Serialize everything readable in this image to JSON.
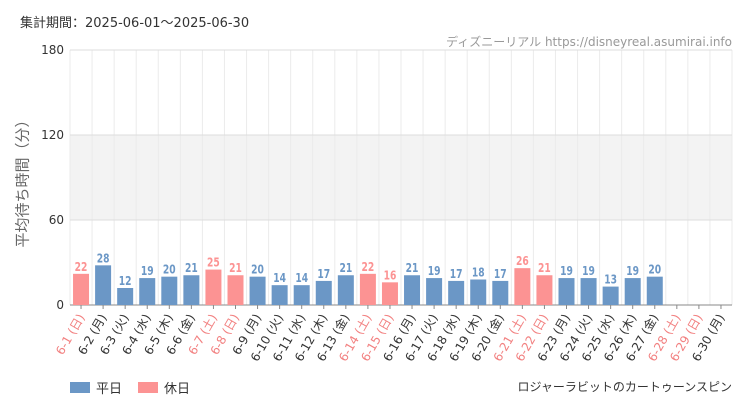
{
  "period_text": "集計期間：2025-06-01～2025-06-30",
  "source_text": "ディズニーリアル https://disneyreal.asumirai.info",
  "attraction_name": "ロジャーラビットのカートゥーンスピン",
  "legend": {
    "weekday_label": "平日",
    "holiday_label": "休日",
    "weekday_color": "#6b97c6",
    "holiday_color": "#fc9393"
  },
  "chart_data": {
    "type": "bar",
    "ylabel": "平均待ち時間（分）",
    "ylim": [
      0,
      180
    ],
    "yticks": [
      0,
      60,
      120,
      180
    ],
    "grid": true,
    "legend_position": "bottom-left",
    "categories": [
      "6-1 (日)",
      "6-2 (月)",
      "6-3 (火)",
      "6-4 (水)",
      "6-5 (木)",
      "6-6 (金)",
      "6-7 (土)",
      "6-8 (日)",
      "6-9 (月)",
      "6-10 (火)",
      "6-11 (水)",
      "6-12 (木)",
      "6-13 (金)",
      "6-14 (土)",
      "6-15 (日)",
      "6-16 (月)",
      "6-17 (火)",
      "6-18 (水)",
      "6-19 (木)",
      "6-20 (金)",
      "6-21 (土)",
      "6-22 (日)",
      "6-23 (月)",
      "6-24 (火)",
      "6-25 (水)",
      "6-26 (木)",
      "6-27 (金)",
      "6-28 (土)",
      "6-29 (日)",
      "6-30 (月)"
    ],
    "values": [
      22,
      28,
      12,
      19,
      20,
      21,
      25,
      21,
      20,
      14,
      14,
      17,
      21,
      22,
      16,
      21,
      19,
      17,
      18,
      17,
      26,
      21,
      19,
      19,
      13,
      19,
      20,
      null,
      null,
      null
    ],
    "is_holiday": [
      true,
      false,
      false,
      false,
      false,
      false,
      true,
      true,
      false,
      false,
      false,
      false,
      false,
      true,
      true,
      false,
      false,
      false,
      false,
      false,
      true,
      true,
      false,
      false,
      false,
      false,
      false,
      true,
      true,
      false
    ]
  }
}
